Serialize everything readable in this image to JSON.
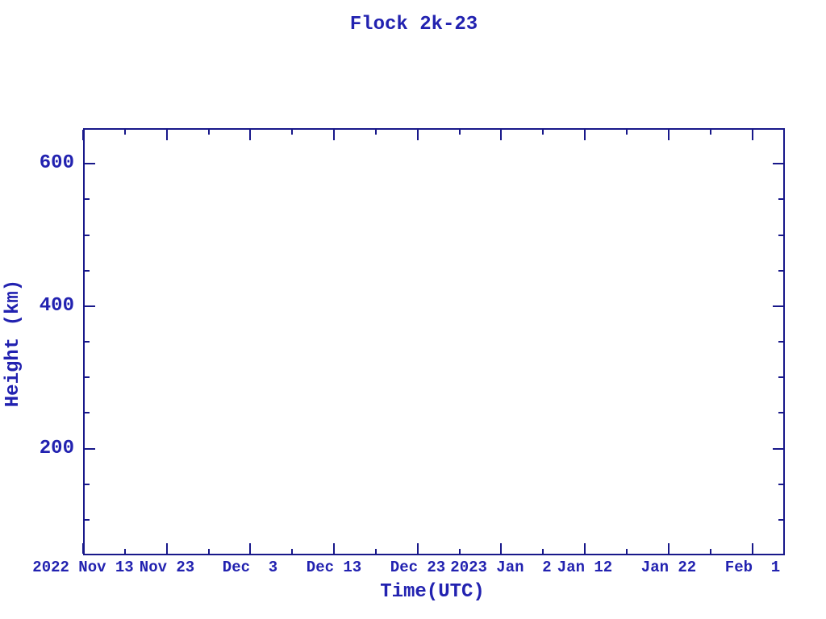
{
  "page": {
    "background": "#ffffff"
  },
  "chart_data": {
    "type": "scatter",
    "title": "Flock 2k-23",
    "xlabel": "Time(UTC)",
    "ylabel": "Height (km)",
    "grid": false,
    "legend": false,
    "series": [],
    "colors": {
      "line": "#18188a",
      "text": "#2222b0",
      "background": "#ffffff"
    },
    "x_axis": {
      "unit": "days since 2022 Nov 13",
      "range_days": [
        0,
        83.9
      ],
      "major_ticks": [
        {
          "day": 0,
          "label": "2022 Nov 13"
        },
        {
          "day": 10,
          "label": "Nov 23"
        },
        {
          "day": 20,
          "label": "Dec  3"
        },
        {
          "day": 30,
          "label": "Dec 13"
        },
        {
          "day": 40,
          "label": "Dec 23"
        },
        {
          "day": 50,
          "label": "2023 Jan  2"
        },
        {
          "day": 60,
          "label": "Jan 12"
        },
        {
          "day": 70,
          "label": "Jan 22"
        },
        {
          "day": 80,
          "label": "Feb  1"
        }
      ],
      "minor_tick_days": [
        5,
        15,
        25,
        35,
        45,
        55,
        65,
        75
      ]
    },
    "y_axis": {
      "range_km": [
        50,
        650
      ],
      "major_ticks": [
        {
          "value": 600,
          "label": "600"
        },
        {
          "value": 400,
          "label": "400"
        },
        {
          "value": 200,
          "label": "200"
        }
      ],
      "minor_tick_values": [
        550,
        500,
        450,
        350,
        300,
        250,
        150,
        100
      ]
    }
  }
}
